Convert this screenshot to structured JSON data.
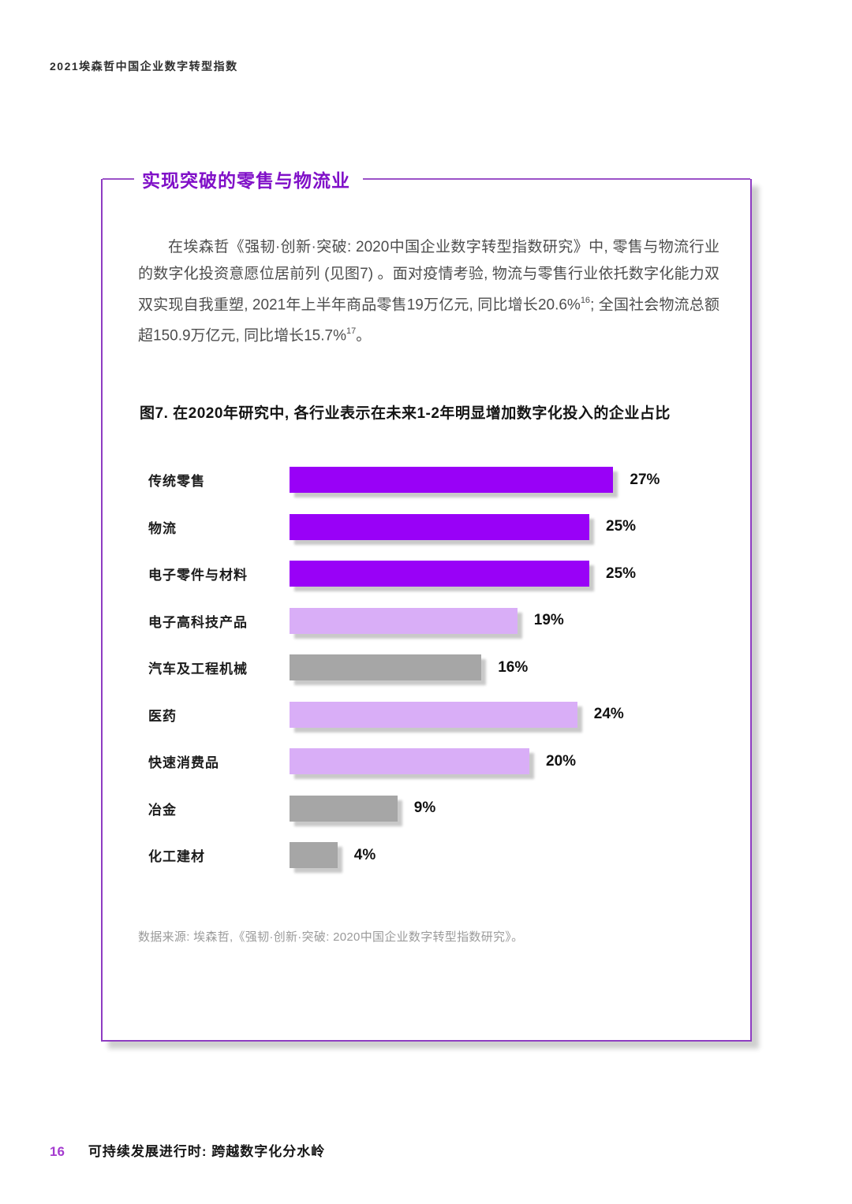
{
  "header": {
    "title": "2021埃森哲中国企业数字转型指数"
  },
  "section": {
    "title": "实现突破的零售与物流业",
    "paragraph": [
      "在埃森哲《强韧·创新·突破: 2020中国企业数字转型指数研究》中, 零售与物流行业的数字化投资意愿位居前列 (见图7) 。面对疫情考验, 物流与零售行业依托数字化能力双双实现自我重塑, 2021年上半年商品零售19万亿元, 同比增长20.6%",
      "16",
      "; 全国社会物流总额超150.9万亿元, 同比增长15.7%",
      "17",
      "。"
    ]
  },
  "palette": {
    "bar_bright": "#9901f7",
    "bar_light": "#d9aef7",
    "bar_gray": "#a6a6a6",
    "accent_purple": "#8010c8",
    "panel_border": "#8e3cc2",
    "page_number_purple": "#a43bcf"
  },
  "chart_data": {
    "type": "bar",
    "orientation": "horizontal",
    "title": "图7. 在2020年研究中, 各行业表示在未来1-2年明显增加数字化投入的企业占比",
    "unit": "%",
    "xlim": [
      0,
      30
    ],
    "categories": [
      "传统零售",
      "物流",
      "电子零件与材料",
      "电子高科技产品",
      "汽车及工程机械",
      "医药",
      "快速消费品",
      "冶金",
      "化工建材"
    ],
    "values": [
      27,
      25,
      25,
      19,
      16,
      24,
      20,
      9,
      4
    ],
    "items": [
      {
        "category": "传统零售",
        "value": 27,
        "value_label": "27%",
        "color": "bar_bright"
      },
      {
        "category": "物流",
        "value": 25,
        "value_label": "25%",
        "color": "bar_bright"
      },
      {
        "category": "电子零件与材料",
        "value": 25,
        "value_label": "25%",
        "color": "bar_bright"
      },
      {
        "category": "电子高科技产品",
        "value": 19,
        "value_label": "19%",
        "color": "bar_light"
      },
      {
        "category": "汽车及工程机械",
        "value": 16,
        "value_label": "16%",
        "color": "bar_gray"
      },
      {
        "category": "医药",
        "value": 24,
        "value_label": "24%",
        "color": "bar_light"
      },
      {
        "category": "快速消费品",
        "value": 20,
        "value_label": "20%",
        "color": "bar_light"
      },
      {
        "category": "冶金",
        "value": 9,
        "value_label": "9%",
        "color": "bar_gray"
      },
      {
        "category": "化工建材",
        "value": 4,
        "value_label": "4%",
        "color": "bar_gray"
      }
    ],
    "source": "数据来源: 埃森哲,《强韧·创新·突破: 2020中国企业数字转型指数研究》。"
  },
  "footer": {
    "page_number": "16",
    "text": "可持续发展进行时: 跨越数字化分水岭"
  }
}
